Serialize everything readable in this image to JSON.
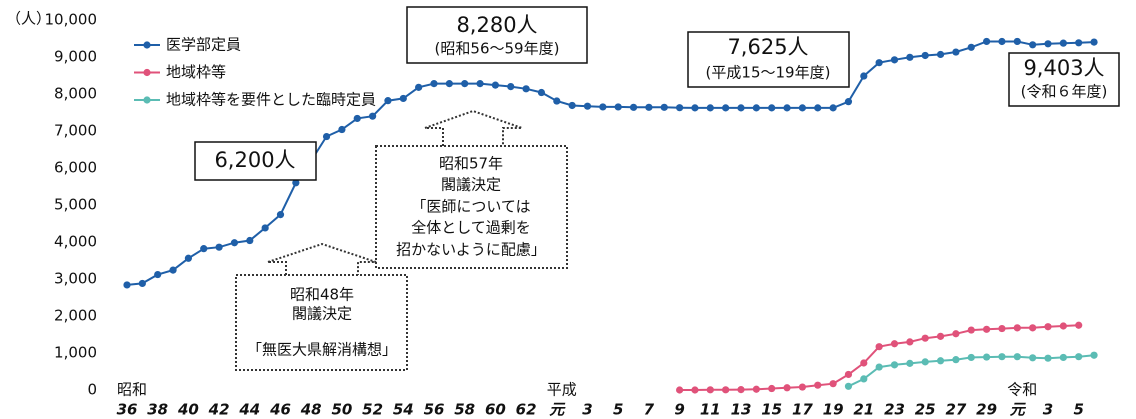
{
  "chart_data": {
    "type": "line",
    "y_label": "（人）",
    "categories": [
      "36",
      null,
      "38",
      null,
      "40",
      null,
      "42",
      null,
      "44",
      null,
      "46",
      null,
      "48",
      null,
      "50",
      null,
      "52",
      null,
      "54",
      null,
      "56",
      null,
      "58",
      null,
      "60",
      null,
      "62",
      null,
      "元",
      null,
      "3",
      null,
      "5",
      null,
      "7",
      null,
      "9",
      null,
      "11",
      null,
      "13",
      null,
      "15",
      null,
      "17",
      null,
      "19",
      null,
      "21",
      null,
      "23",
      null,
      "25",
      null,
      "27",
      null,
      "29",
      null,
      "元",
      null,
      "3",
      null,
      "5",
      null
    ],
    "eras": [
      "昭和",
      "平成",
      "令和"
    ],
    "series": [
      {
        "name": "医学部定員",
        "color": "#1f5fa8",
        "values": [
          2840,
          2880,
          3120,
          3240,
          3560,
          3820,
          3860,
          3980,
          4040,
          4380,
          4740,
          5600,
          6200,
          6850,
          7040,
          7340,
          7400,
          7820,
          7880,
          8180,
          8280,
          8280,
          8280,
          8280,
          8240,
          8200,
          8140,
          8040,
          7810,
          7690,
          7670,
          7650,
          7650,
          7640,
          7640,
          7640,
          7630,
          7625,
          7625,
          7625,
          7625,
          7625,
          7625,
          7625,
          7625,
          7625,
          7625,
          7793,
          8486,
          8846,
          8923,
          8991,
          9041,
          9069,
          9134,
          9262,
          9420,
          9419,
          9420,
          9330,
          9357,
          9374,
          9384,
          9403
        ]
      },
      {
        "name": "地域枠等",
        "color": "#e0527a",
        "values": [
          null,
          null,
          null,
          null,
          null,
          null,
          null,
          null,
          null,
          null,
          null,
          null,
          null,
          null,
          null,
          null,
          null,
          null,
          null,
          null,
          null,
          null,
          null,
          null,
          null,
          null,
          null,
          null,
          null,
          null,
          null,
          null,
          null,
          null,
          null,
          null,
          0,
          0,
          5,
          5,
          10,
          20,
          40,
          60,
          80,
          130,
          170,
          420,
          730,
          1170,
          1250,
          1300,
          1400,
          1450,
          1520,
          1620,
          1640,
          1660,
          1680,
          1680,
          1710,
          1730,
          1750,
          null
        ]
      },
      {
        "name": "地域枠等を要件とした臨時定員",
        "color": "#5bbcb4",
        "values": [
          null,
          null,
          null,
          null,
          null,
          null,
          null,
          null,
          null,
          null,
          null,
          null,
          null,
          null,
          null,
          null,
          null,
          null,
          null,
          null,
          null,
          null,
          null,
          null,
          null,
          null,
          null,
          null,
          null,
          null,
          null,
          null,
          null,
          null,
          null,
          null,
          null,
          null,
          null,
          null,
          null,
          null,
          null,
          null,
          null,
          null,
          null,
          100,
          300,
          620,
          680,
          720,
          760,
          790,
          820,
          880,
          890,
          900,
          900,
          870,
          860,
          880,
          900,
          940
        ]
      }
    ],
    "ylim": [
      0,
      10000
    ],
    "yticks": [
      0,
      {
        "value": 1000,
        "label": "1,000"
      },
      {
        "value": 2000,
        "label": "2,000"
      },
      {
        "value": 3000,
        "label": "3,000"
      },
      {
        "value": 4000,
        "label": "4,000"
      },
      {
        "value": 5000,
        "label": "5,000"
      },
      {
        "value": 6000,
        "label": "6,000"
      },
      {
        "value": 7000,
        "label": "7,000"
      },
      {
        "value": 8000,
        "label": "8,000"
      },
      {
        "value": 9000,
        "label": "9,000"
      },
      {
        "value": 10000,
        "label": "10,000"
      }
    ],
    "grid": false,
    "annotations": [
      {
        "lines": [
          "8,280人",
          "(昭和56～59年度)"
        ]
      },
      {
        "lines": [
          "7,625人",
          "(平成15～19年度)"
        ]
      },
      {
        "lines": [
          "9,403人",
          "(令和６年度)"
        ]
      },
      {
        "lines": [
          "6,200人"
        ]
      },
      {
        "lines": [
          "昭和57年",
          "閣議決定",
          "「医師については",
          "全体として過剰を",
          "招かないように配慮」"
        ]
      },
      {
        "lines": [
          "昭和48年",
          "閣議決定",
          "「無医大県解消構想」"
        ]
      }
    ]
  }
}
